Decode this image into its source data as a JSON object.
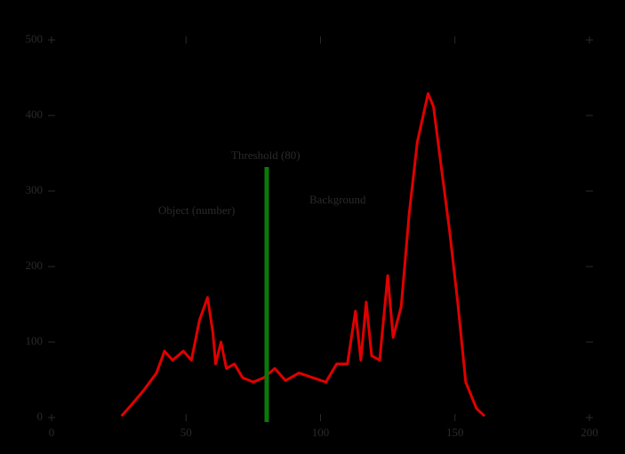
{
  "chart_data": {
    "type": "line",
    "x": [
      26,
      29,
      34,
      39,
      42,
      45,
      49,
      52,
      55,
      58,
      60,
      61,
      63,
      65,
      68,
      71,
      75,
      79,
      83,
      87,
      92,
      97,
      102,
      106,
      110,
      113,
      115,
      117,
      119,
      122,
      125,
      127,
      130,
      133,
      136,
      140,
      142,
      145,
      148,
      151,
      154,
      158,
      161
    ],
    "series": [
      {
        "color": "#e00000",
        "values": [
          2,
          14,
          35,
          59,
          88,
          76,
          88,
          76,
          129,
          159,
          112,
          71,
          100,
          65,
          71,
          53,
          47,
          53,
          65,
          49,
          59,
          53,
          47,
          71,
          71,
          141,
          76,
          153,
          82,
          76,
          188,
          106,
          147,
          271,
          365,
          429,
          412,
          329,
          247,
          153,
          47,
          12,
          2
        ]
      }
    ],
    "xlim": [
      0,
      200
    ],
    "xticks": [
      0,
      50,
      100,
      150,
      200
    ],
    "ylim": [
      0,
      500
    ],
    "yticks": [
      0,
      100,
      200,
      300,
      400,
      500
    ],
    "threshold": {
      "value": 80,
      "label": "Threshold (80)",
      "color": "#0a7a0a"
    },
    "annotations": [
      "Object (number)",
      "Background"
    ]
  }
}
